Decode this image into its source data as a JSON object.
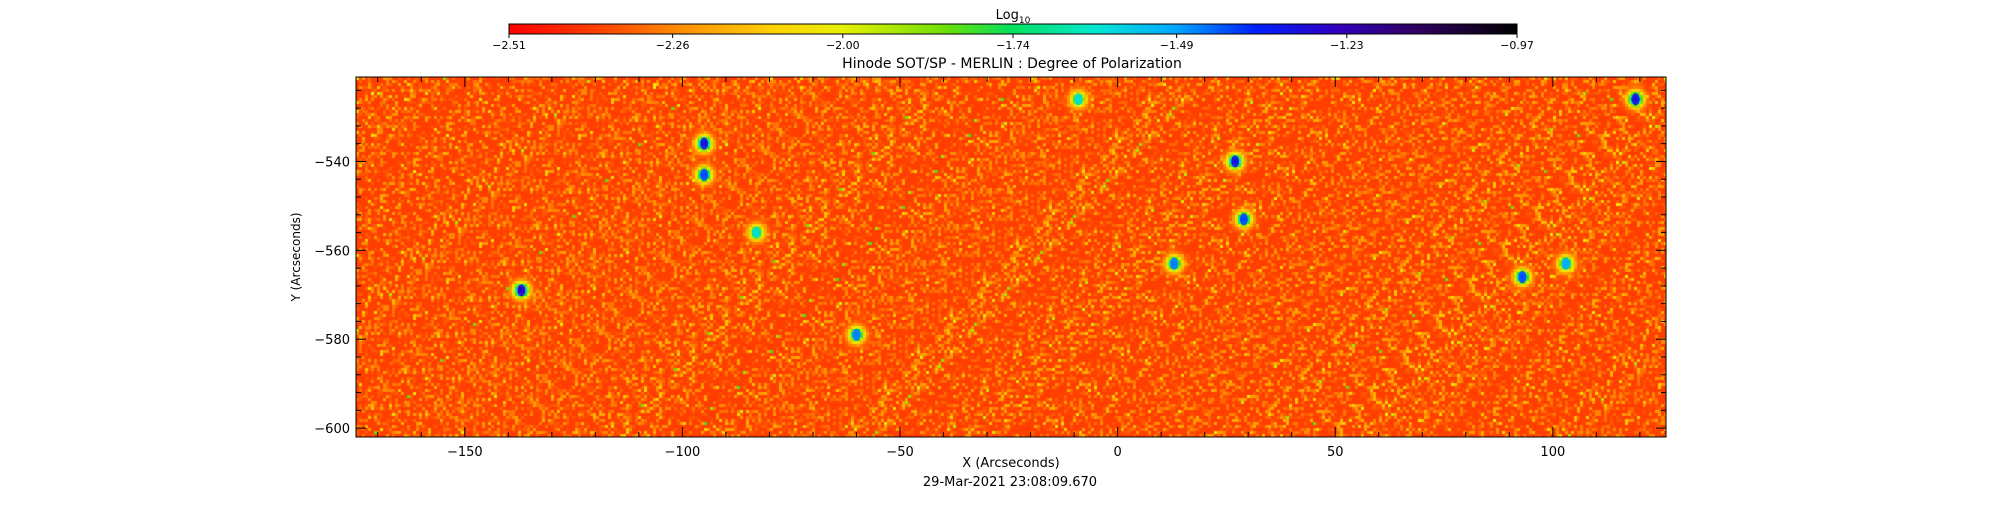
{
  "chart_data": {
    "type": "heatmap",
    "title": "Hinode SOT/SP - MERLIN : Degree of Polarization",
    "xlabel": "X (Arcseconds)",
    "ylabel": "Y (Arcseconds)",
    "timestamp": "29-Mar-2021 23:08:09.670",
    "xlim": [
      -175,
      126
    ],
    "ylim": [
      -602,
      -521
    ],
    "x_ticks": [
      -150,
      -100,
      -50,
      0,
      50,
      100
    ],
    "x_tick_labels": [
      "−150",
      "−100",
      "−50",
      "0",
      "50",
      "100"
    ],
    "y_ticks": [
      -540,
      -560,
      -580,
      -600
    ],
    "y_tick_labels": [
      "−540",
      "−560",
      "−580",
      "−600"
    ],
    "colorbar": {
      "label_base": "Log",
      "label_sub": "10",
      "range": [
        -2.51,
        -0.97
      ],
      "tick_values": [
        -2.51,
        -2.26,
        -2.0,
        -1.74,
        -1.49,
        -1.23,
        -0.97
      ],
      "tick_labels": [
        "−2.51",
        "−2.26",
        "−2.00",
        "−1.74",
        "−1.49",
        "−1.23",
        "−0.97"
      ],
      "colormap": "rainbow (red to black)"
    },
    "typical_value": -2.38,
    "high_polarization_regions": [
      {
        "x": -95,
        "y": -536,
        "value": -1.3
      },
      {
        "x": -95,
        "y": -543,
        "value": -1.4
      },
      {
        "x": -137,
        "y": -569,
        "value": -1.25
      },
      {
        "x": -60,
        "y": -579,
        "value": -1.45
      },
      {
        "x": 27,
        "y": -540,
        "value": -1.3
      },
      {
        "x": 29,
        "y": -553,
        "value": -1.4
      },
      {
        "x": 13,
        "y": -563,
        "value": -1.45
      },
      {
        "x": 93,
        "y": -566,
        "value": -1.4
      },
      {
        "x": 119,
        "y": -526,
        "value": -1.3
      },
      {
        "x": 103,
        "y": -563,
        "value": -1.5
      },
      {
        "x": -9,
        "y": -526,
        "value": -1.6
      },
      {
        "x": -83,
        "y": -556,
        "value": -1.6
      }
    ]
  }
}
